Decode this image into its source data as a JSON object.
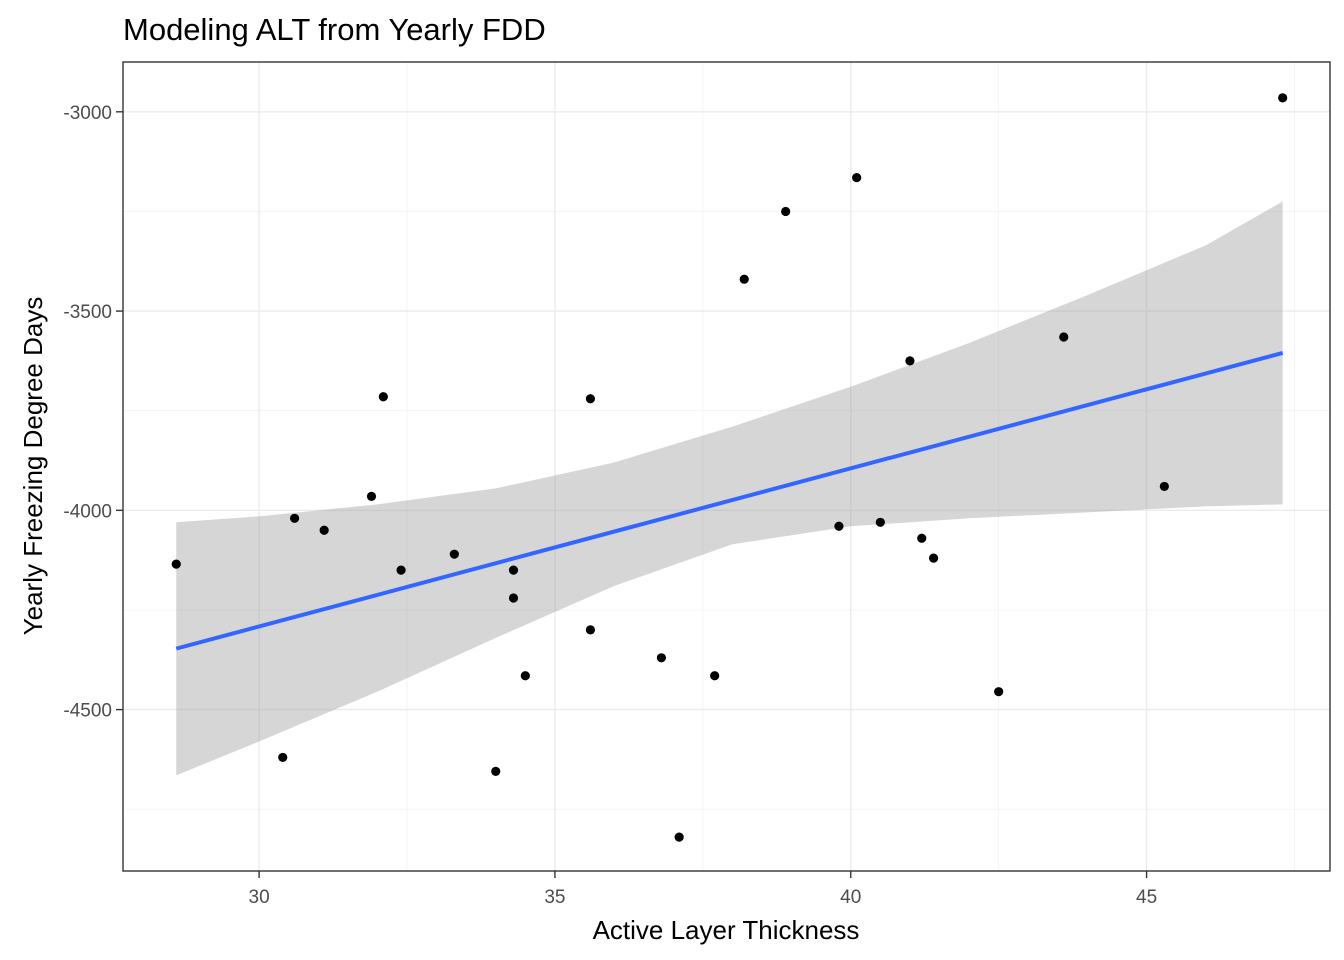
{
  "chart_data": {
    "type": "scatter",
    "title": "Modeling ALT from Yearly FDD",
    "xlabel": "Active Layer Thickness",
    "ylabel": "Yearly Freezing Degree Days",
    "xlim": [
      27.7,
      48.1
    ],
    "ylim": [
      -4905,
      -2875
    ],
    "xticks": [
      30,
      35,
      40,
      45
    ],
    "yticks": [
      -3000,
      -3500,
      -4000,
      -4500
    ],
    "x_tick_labels": [
      "30",
      "35",
      "40",
      "45"
    ],
    "y_tick_labels": [
      "-3000",
      "-3500",
      "-4000",
      "-4500"
    ],
    "grid": true,
    "legend": "none",
    "colors": {
      "points": "#000000",
      "fit_line": "#3366FF",
      "confidence_band": "#999999",
      "grid": "#ebebeb",
      "panel_border": "#333333"
    },
    "points": [
      {
        "x": 28.6,
        "y": -4135
      },
      {
        "x": 30.4,
        "y": -4620
      },
      {
        "x": 30.6,
        "y": -4020
      },
      {
        "x": 31.1,
        "y": -4050
      },
      {
        "x": 31.9,
        "y": -3965
      },
      {
        "x": 32.1,
        "y": -3715
      },
      {
        "x": 32.4,
        "y": -4150
      },
      {
        "x": 33.3,
        "y": -4110
      },
      {
        "x": 34.0,
        "y": -4655
      },
      {
        "x": 34.3,
        "y": -4150
      },
      {
        "x": 34.3,
        "y": -4220
      },
      {
        "x": 34.5,
        "y": -4415
      },
      {
        "x": 35.6,
        "y": -4300
      },
      {
        "x": 35.6,
        "y": -3720
      },
      {
        "x": 36.8,
        "y": -4370
      },
      {
        "x": 37.1,
        "y": -4820
      },
      {
        "x": 37.7,
        "y": -4415
      },
      {
        "x": 38.2,
        "y": -3420
      },
      {
        "x": 38.9,
        "y": -3250
      },
      {
        "x": 39.8,
        "y": -4040
      },
      {
        "x": 40.1,
        "y": -3165
      },
      {
        "x": 40.5,
        "y": -4030
      },
      {
        "x": 41.0,
        "y": -3625
      },
      {
        "x": 41.2,
        "y": -4070
      },
      {
        "x": 41.4,
        "y": -4120
      },
      {
        "x": 42.5,
        "y": -4455
      },
      {
        "x": 43.6,
        "y": -3565
      },
      {
        "x": 45.3,
        "y": -3940
      },
      {
        "x": 47.3,
        "y": -2965
      }
    ],
    "fit_line": {
      "x": [
        28.6,
        47.3
      ],
      "y": [
        -4347,
        -3605
      ]
    },
    "confidence_band": {
      "x": [
        28.6,
        30,
        32,
        34,
        36,
        38,
        40,
        42,
        44,
        46,
        47.3
      ],
      "upper": [
        -4030,
        -4015,
        -3985,
        -3945,
        -3880,
        -3790,
        -3690,
        -3580,
        -3460,
        -3335,
        -3225
      ],
      "lower": [
        -4665,
        -4580,
        -4455,
        -4320,
        -4190,
        -4085,
        -4040,
        -4020,
        -4005,
        -3990,
        -3985
      ]
    }
  }
}
